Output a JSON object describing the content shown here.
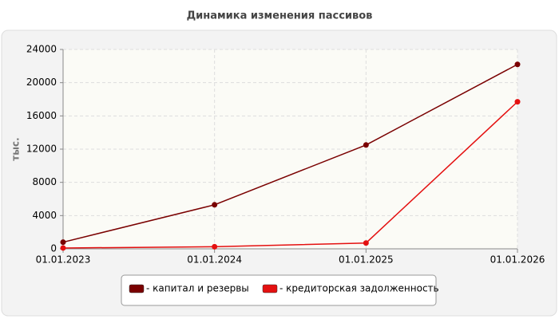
{
  "chart_data": {
    "type": "line",
    "title": "Динамика изменения пассивов",
    "y_label": "тыс.",
    "categories": [
      "01.01.2023",
      "01.01.2024",
      "01.01.2025",
      "01.01.2026"
    ],
    "series": [
      {
        "name": "- капитал и резервы",
        "color": "#7a0000",
        "values": [
          800,
          5300,
          12500,
          22200
        ]
      },
      {
        "name": "- кредиторская задолженность",
        "color": "#e41010",
        "values": [
          100,
          250,
          700,
          17700
        ]
      }
    ],
    "ylim": [
      0,
      24000
    ],
    "yticks": [
      0,
      4000,
      8000,
      12000,
      16000,
      20000,
      24000
    ],
    "grid": true
  }
}
